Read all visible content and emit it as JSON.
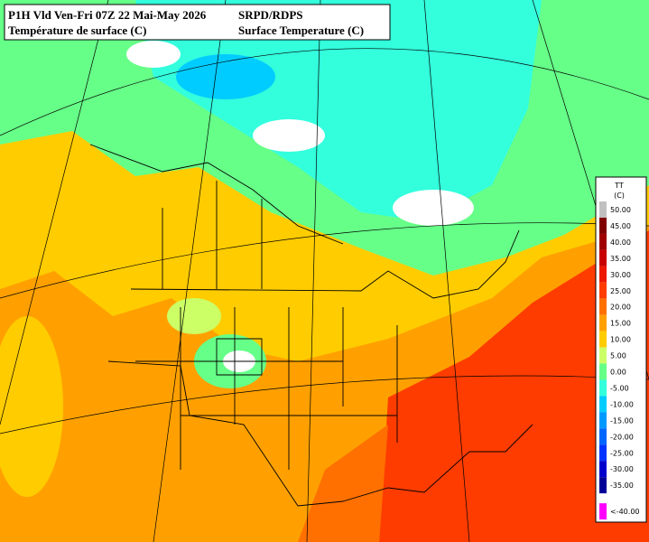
{
  "header": {
    "left": [
      "P1H Vld Ven-Fri 07Z 22 Mai-May 2026",
      "Température de surface (C)"
    ],
    "right": [
      "SRPD/RDPS",
      "Surface Temperature (C)"
    ]
  },
  "legend": {
    "title": "TT",
    "unit": "(C)",
    "entries": [
      {
        "value": 50,
        "label": "50.00",
        "color": "#c0c0c0"
      },
      {
        "value": 45,
        "label": "45.00",
        "color": "#800000"
      },
      {
        "value": 40,
        "label": "40.00",
        "color": "#a00000"
      },
      {
        "value": 35,
        "label": "35.00",
        "color": "#c80000"
      },
      {
        "value": 30,
        "label": "30.00",
        "color": "#ee1800"
      },
      {
        "value": 25,
        "label": "25.00",
        "color": "#ff3c00"
      },
      {
        "value": 20,
        "label": "20.00",
        "color": "#ff7000"
      },
      {
        "value": 15,
        "label": "15.00",
        "color": "#ffa000"
      },
      {
        "value": 10,
        "label": "10.00",
        "color": "#ffcc00"
      },
      {
        "value": 5,
        "label": "5.00",
        "color": "#ccff66"
      },
      {
        "value": 0,
        "label": "0.00",
        "color": "#66ff88"
      },
      {
        "value": -5,
        "label": "-5.00",
        "color": "#33ffdd"
      },
      {
        "value": -10,
        "label": "-10.00",
        "color": "#00ccff"
      },
      {
        "value": -15,
        "label": "-15.00",
        "color": "#0099ff"
      },
      {
        "value": -20,
        "label": "-20.00",
        "color": "#0066ff"
      },
      {
        "value": -25,
        "label": "-25.00",
        "color": "#0033ff"
      },
      {
        "value": -30,
        "label": "-30.00",
        "color": "#0000cc"
      },
      {
        "value": -35,
        "label": "-35.00",
        "color": "#000099"
      },
      {
        "value": -40,
        "label": "<-40.00",
        "color": "#ff00ff"
      }
    ]
  }
}
